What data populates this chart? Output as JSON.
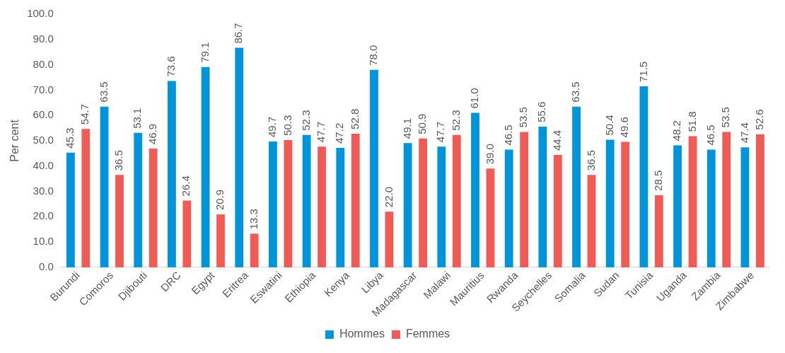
{
  "chart_data": {
    "type": "bar",
    "ylabel": "Per cent",
    "categories": [
      "Burundi",
      "Comoros",
      "Djibouti",
      "DRC",
      "Egypt",
      "Eritrea",
      "Eswatini",
      "Ethiopia",
      "Kenya",
      "Libya",
      "Madagascar",
      "Malawi",
      "Mauritius",
      "Rwanda",
      "Seychelles",
      "Somalia",
      "Sudan",
      "Tunisia",
      "Uganda",
      "Zambia",
      "Zimbabwe"
    ],
    "series": [
      {
        "name": "Hommes",
        "color": "#0095da",
        "values": [
          45.3,
          63.5,
          53.1,
          73.6,
          79.1,
          86.7,
          49.7,
          52.3,
          47.2,
          78.0,
          49.1,
          47.7,
          61.0,
          46.5,
          55.6,
          63.5,
          50.4,
          71.5,
          48.2,
          46.5,
          47.4
        ],
        "value_labels": [
          "45.3",
          "63.5",
          "53.1",
          "73.6",
          "79.1",
          "86.7",
          "49.7",
          "52.3",
          "47.2",
          "78.0",
          "49.1",
          "47.7",
          "61.0",
          "46.5",
          "55.6",
          "63.5",
          "50.4",
          "71.5",
          "48.2",
          "46.5",
          "47.4"
        ]
      },
      {
        "name": "Femmes",
        "color": "#f15b55",
        "values": [
          54.7,
          36.5,
          46.9,
          26.4,
          20.9,
          13.3,
          50.3,
          47.7,
          52.8,
          22.0,
          50.9,
          52.3,
          39.0,
          53.5,
          44.4,
          36.5,
          49.6,
          28.5,
          51.8,
          53.5,
          52.6
        ],
        "value_labels": [
          "54.7",
          "36.5",
          "46.9",
          "26.4",
          "20.9",
          "13.3",
          "50.3",
          "47.7",
          "52.8",
          "22.0",
          "50.9",
          "52.3",
          "39.0",
          "53.5",
          "44.4",
          "36.5",
          "49.6",
          "28.5",
          "51.8",
          "53.5",
          "52.6"
        ]
      }
    ],
    "ylim": [
      0,
      100
    ],
    "yticks": [
      {
        "value": 0,
        "label": "0.0"
      },
      {
        "value": 10,
        "label": "10.0"
      },
      {
        "value": 20,
        "label": "20.0"
      },
      {
        "value": 30,
        "label": "30.0"
      },
      {
        "value": 40,
        "label": "40.0"
      },
      {
        "value": 50,
        "label": "50.0"
      },
      {
        "value": 60,
        "label": "60.0"
      },
      {
        "value": 70,
        "label": "70.0"
      },
      {
        "value": 80,
        "label": "80.0"
      },
      {
        "value": 90,
        "label": "90.0"
      },
      {
        "value": 100,
        "label": "100.0"
      }
    ],
    "grid": false,
    "legend": "bottom"
  }
}
